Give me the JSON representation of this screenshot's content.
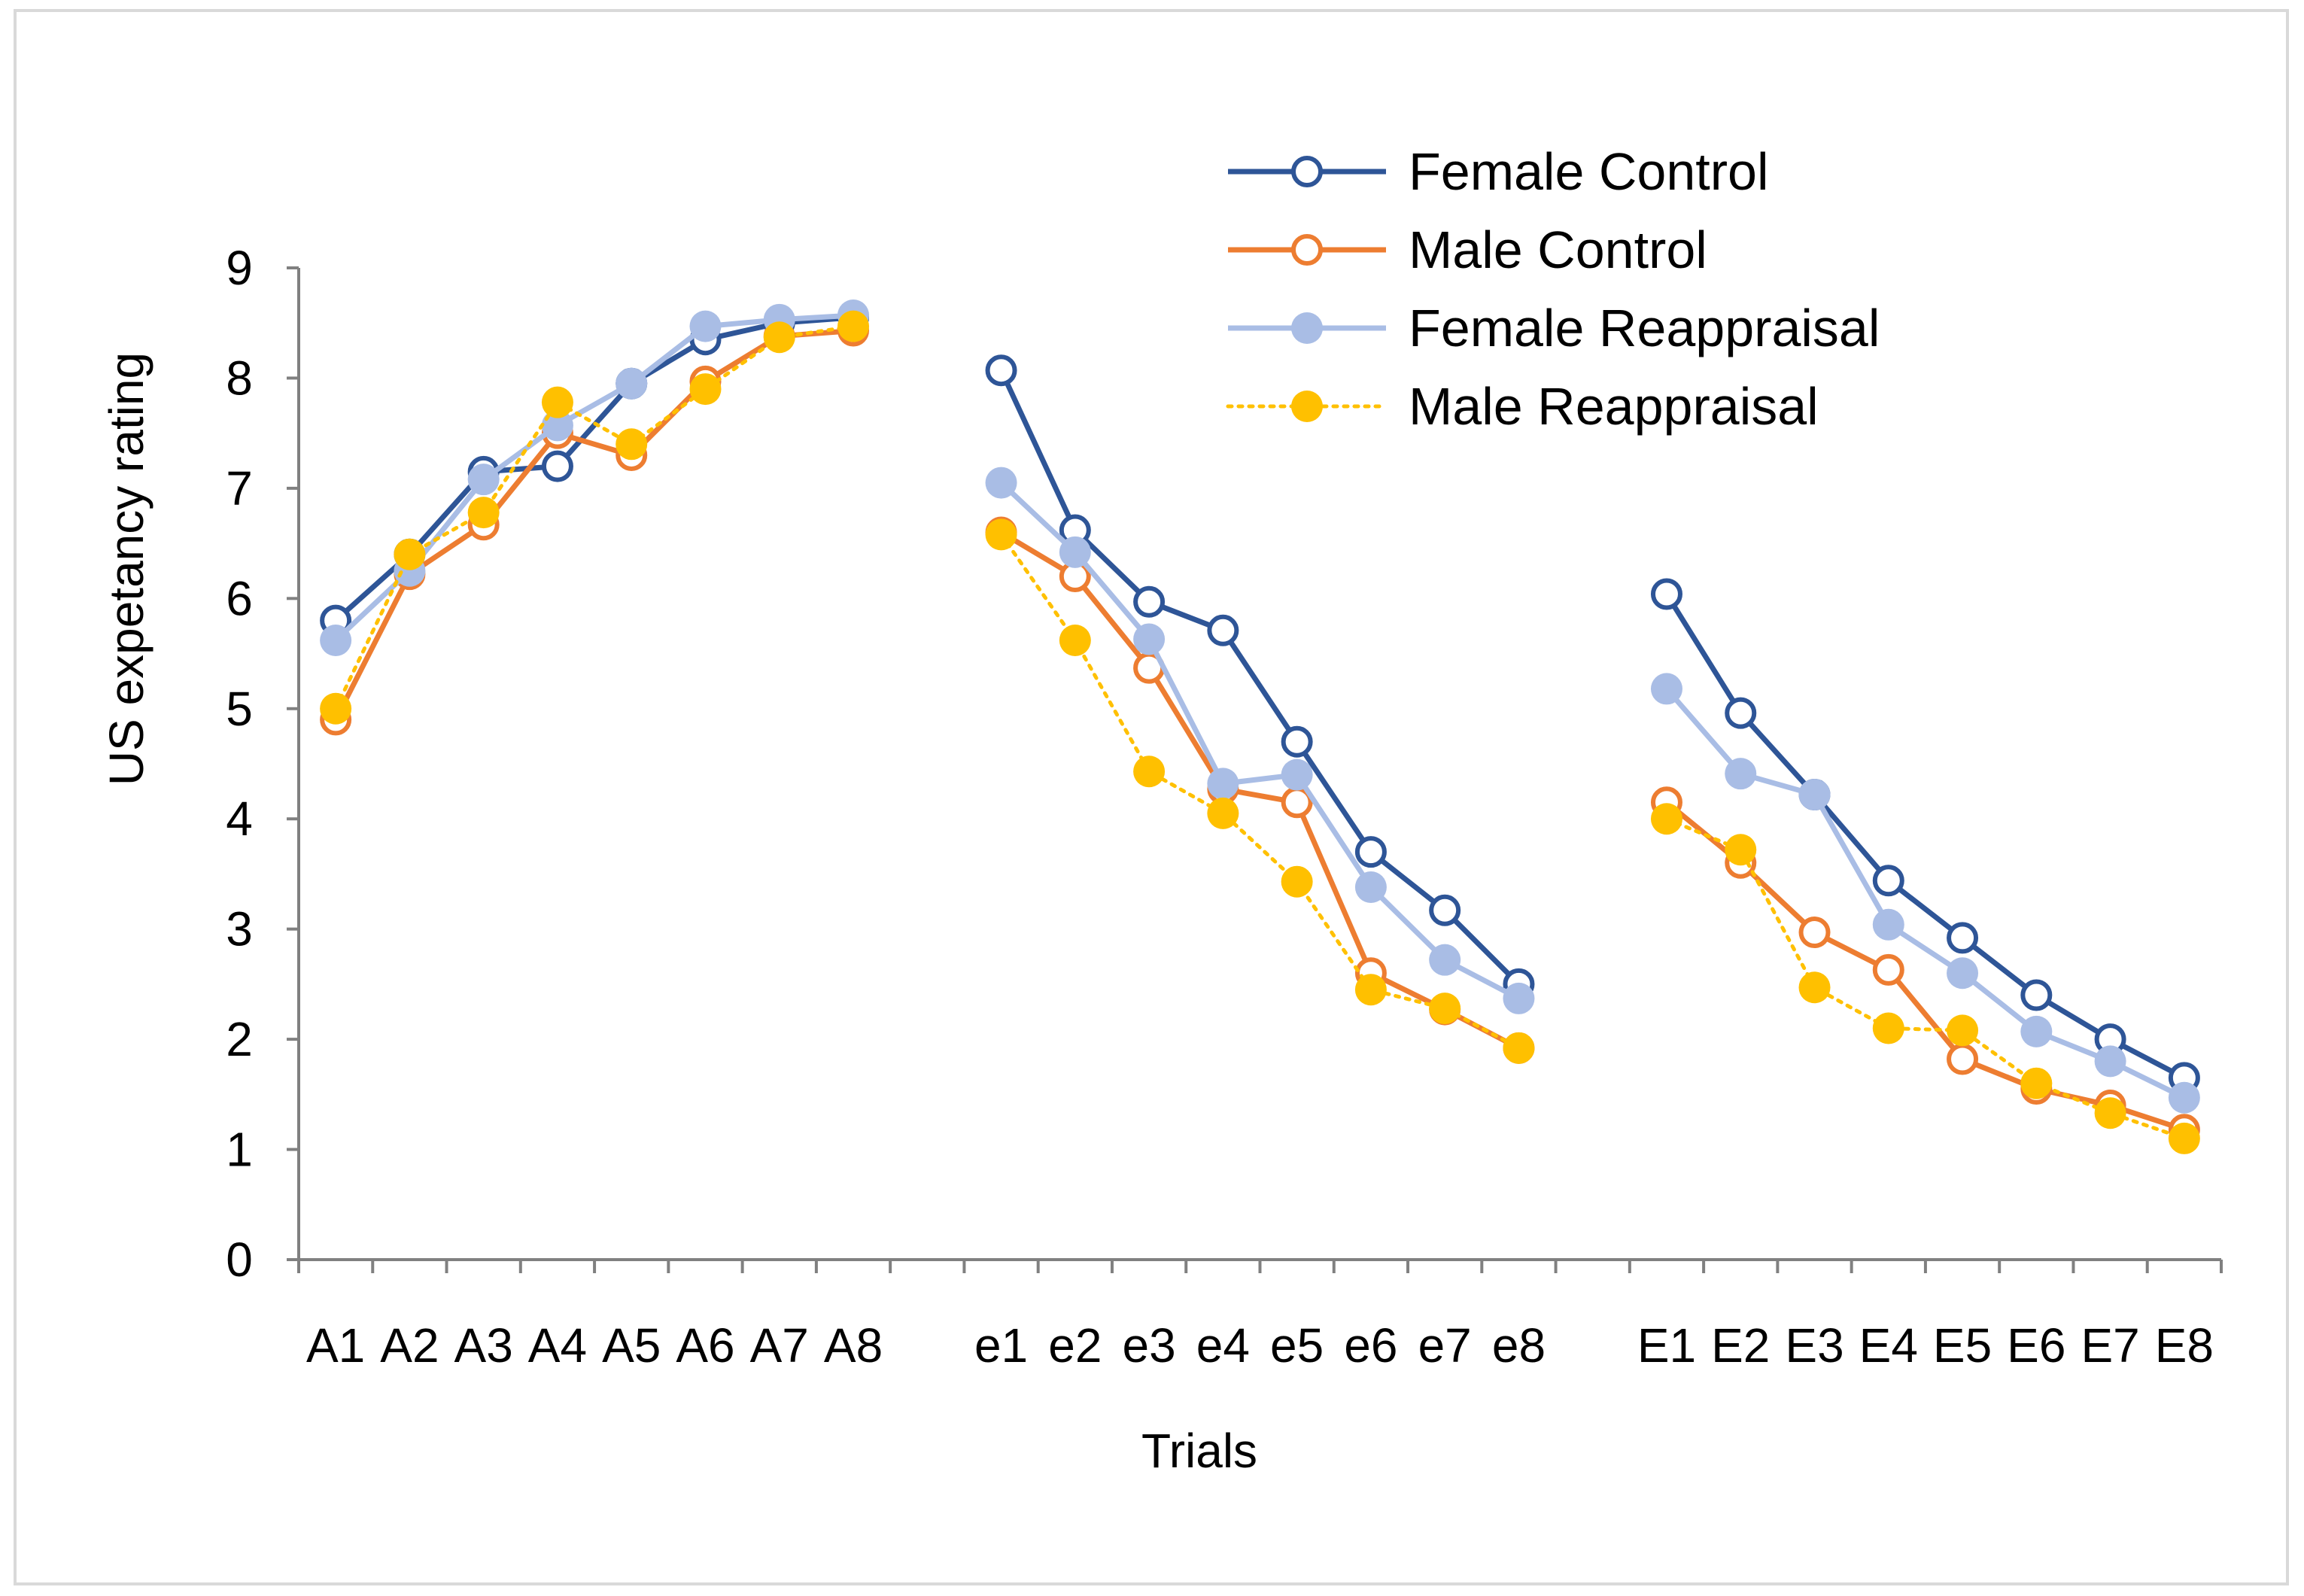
{
  "chart_data": {
    "type": "line",
    "title": "",
    "xlabel": "Trials",
    "ylabel": "US expetancy rating",
    "ylim": [
      0,
      9
    ],
    "yticks": [
      0,
      1,
      2,
      3,
      4,
      5,
      6,
      7,
      8,
      9
    ],
    "grid": false,
    "legend_position": "top-right",
    "categories": [
      "A1",
      "A2",
      "A3",
      "A4",
      "A5",
      "A6",
      "A7",
      "A8",
      "",
      "e1",
      "e2",
      "e3",
      "e4",
      "e5",
      "e6",
      "e7",
      "e8",
      "",
      "E1",
      "E2",
      "E3",
      "E4",
      "E5",
      "E6",
      "E7",
      "E8"
    ],
    "series": [
      {
        "name": "Female Control",
        "color": "#2e5597",
        "marker": "open-circle",
        "line": "solid",
        "values": [
          5.8,
          6.4,
          7.15,
          7.2,
          7.95,
          8.35,
          8.5,
          8.55,
          null,
          8.07,
          6.62,
          5.97,
          5.71,
          4.7,
          3.7,
          3.17,
          2.5,
          null,
          6.04,
          4.96,
          4.22,
          3.44,
          2.92,
          2.4,
          2.0,
          1.65
        ]
      },
      {
        "name": "Male Control",
        "color": "#ed7d31",
        "marker": "open-circle",
        "line": "solid",
        "values": [
          4.9,
          6.22,
          6.67,
          7.5,
          7.3,
          7.97,
          8.38,
          8.43,
          null,
          6.6,
          6.2,
          5.37,
          4.27,
          4.15,
          2.6,
          2.27,
          1.92,
          null,
          4.15,
          3.6,
          2.97,
          2.63,
          1.82,
          1.55,
          1.4,
          1.18
        ]
      },
      {
        "name": "Female Reappraisal",
        "color": "#a9bde5",
        "marker": "filled-circle",
        "line": "solid",
        "values": [
          5.62,
          6.25,
          7.08,
          7.57,
          7.95,
          8.47,
          8.53,
          8.57,
          null,
          7.05,
          6.42,
          5.63,
          4.32,
          4.4,
          3.38,
          2.72,
          2.37,
          null,
          5.18,
          4.41,
          4.22,
          3.04,
          2.6,
          2.07,
          1.8,
          1.47
        ]
      },
      {
        "name": "Male Reappraisal",
        "color": "#ffc000",
        "marker": "filled-circle",
        "line": "dotted",
        "values": [
          5.0,
          6.4,
          6.78,
          7.78,
          7.4,
          7.9,
          8.37,
          8.47,
          null,
          6.58,
          5.62,
          4.43,
          4.05,
          3.43,
          2.45,
          2.28,
          1.92,
          null,
          4.0,
          3.72,
          2.47,
          2.1,
          2.08,
          1.6,
          1.33,
          1.1
        ]
      }
    ]
  }
}
